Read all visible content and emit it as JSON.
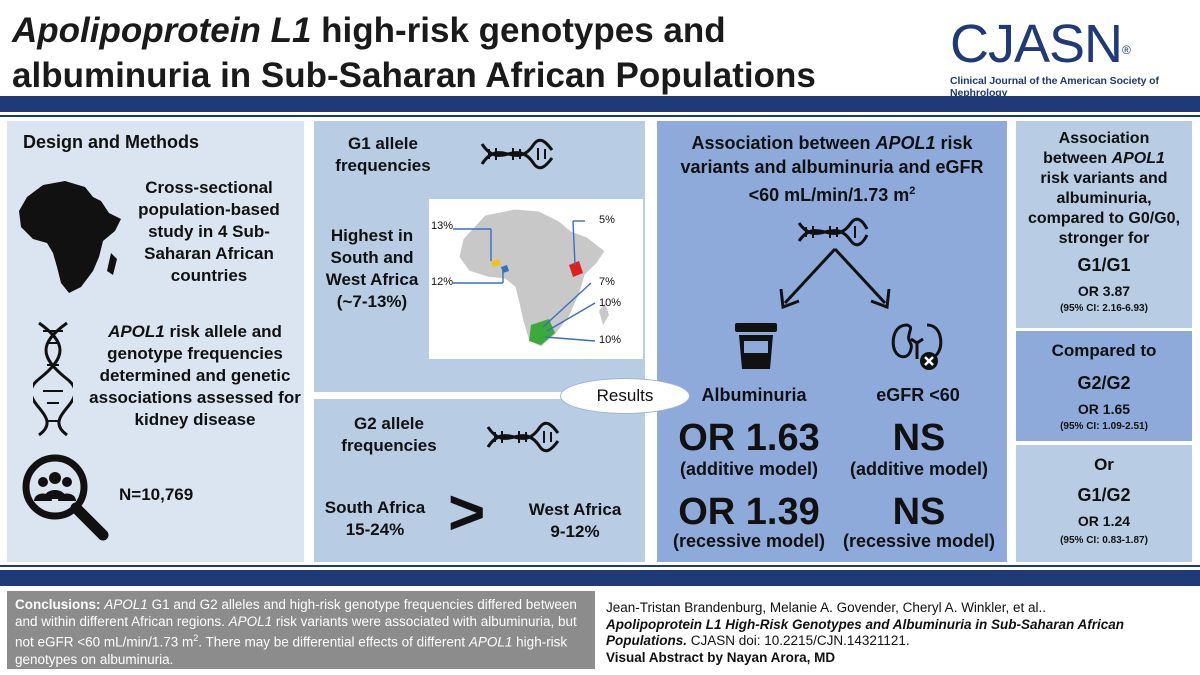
{
  "header": {
    "title_italic": "Apolipoprotein L1",
    "title_line1_rest": " high-risk genotypes and",
    "title_line2": "albuminuria in Sub-Saharan African Populations",
    "logo_text": "CJASN",
    "logo_reg": "®",
    "logo_subtitle": "Clinical Journal of the American Society of Nephrology"
  },
  "design": {
    "heading": "Design and Methods",
    "study": "Cross-sectional population-based study in 4 Sub-Saharan African countries",
    "apol1_italic": "APOL1",
    "apol1_rest": " risk allele and genotype frequencies determined and genetic associations assessed for kidney disease",
    "n_label": "N=10,769"
  },
  "g1": {
    "heading_line1": "G1 allele",
    "heading_line2": "frequencies",
    "text_line1": "Highest in",
    "text_line2": "South and",
    "text_line3": "West Africa",
    "text_line4": "(~7-13%)",
    "map_labels": [
      "13%",
      "12%",
      "5%",
      "7%",
      "10%",
      "10%"
    ]
  },
  "g2": {
    "heading_line1": "G2 allele",
    "heading_line2": "frequencies",
    "south_line1": "South Africa",
    "south_line2": "15-24%",
    "compare_symbol": ">",
    "west_line1": "West Africa",
    "west_line2": "9-12%"
  },
  "results": {
    "bubble": "Results",
    "heading_line1": "Association between ",
    "heading_italic": "APOL1",
    "heading_line1_rest": " risk",
    "heading_line2": "variants and albuminuria and eGFR",
    "heading_line3": "<60 mL/min/1.73 m",
    "heading_sup": "2",
    "albuminuria_label": "Albuminuria",
    "egfr_label": "eGFR <60",
    "alb_additive_value": "OR 1.63",
    "alb_additive_model": "(additive model)",
    "alb_recessive_value": "OR 1.39",
    "alb_recessive_model": "(recessive model)",
    "egfr_additive_value": "NS",
    "egfr_additive_model": "(additive model)",
    "egfr_recessive_value": "NS",
    "egfr_recessive_model": "(recessive model)"
  },
  "side": {
    "p1_line1": "Association",
    "p1_line2a": "between ",
    "p1_line2_italic": "APOL1",
    "p1_line3": "risk variants and",
    "p1_line4": "albuminuria,",
    "p1_line5": "compared to G0/G0,",
    "p1_line6": "stronger for",
    "p1_genotype": "G1/G1",
    "p1_or": "OR 3.87",
    "p1_ci": "(95% CI: 2.16-6.93)",
    "p2_line1": "Compared to",
    "p2_genotype": "G2/G2",
    "p2_or": "OR 1.65",
    "p2_ci": "(95% CI: 1.09-2.51)",
    "p3_line1": "Or",
    "p3_genotype": "G1/G2",
    "p3_or": "OR 1.24",
    "p3_ci": "(95% CI: 0.83-1.87)"
  },
  "footer": {
    "conclusions_label": "Conclusions:",
    "c_apol1_a": "APOL1",
    "c_part1": " G1 and G2 alleles and high-risk genotype frequencies differed between and within different African regions. ",
    "c_apol1_b": "APOL1",
    "c_part2": " risk variants were associated with albuminuria, but not eGFR <60 mL/min/1.73 m",
    "c_sup": "2",
    "c_part3": ". There may be differential effects of different ",
    "c_apol1_c": "APOL1",
    "c_part4": " high-risk genotypes on albuminuria.",
    "authors": "Jean-Tristan Brandenburg, Melanie A. Govender, Cheryl A. Winkler, et al..",
    "article_title": "Apolipoprotein L1 High-Risk Genotypes and Albuminuria in Sub-Saharan African Populations.",
    "doi": " CJASN doi: 10.2215/CJN.14321121.",
    "visual_credit": "Visual Abstract by Nayan Arora, MD"
  },
  "colors": {
    "navy": "#1f3a76",
    "panel_light": "#dbe5f1",
    "panel_mid": "#b8cce4",
    "panel_blue": "#8eaadb",
    "footer_gray": "#8c8c8c"
  }
}
